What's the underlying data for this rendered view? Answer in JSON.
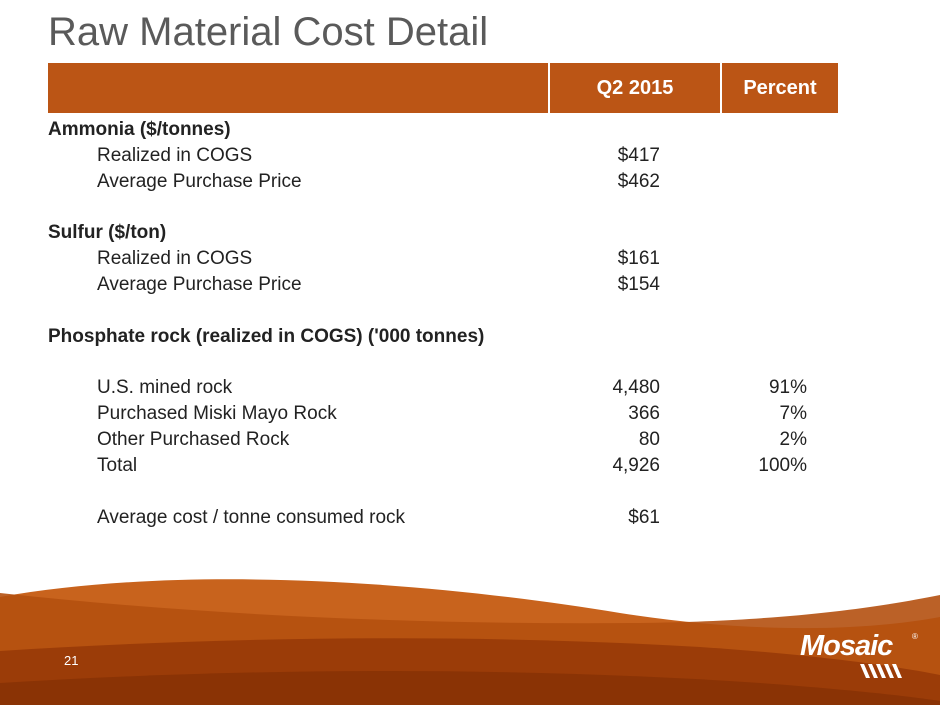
{
  "slide": {
    "title": "Raw Material Cost Detail",
    "page_number": "21"
  },
  "table": {
    "headers": {
      "blank": "",
      "q2_2015": "Q2 2015",
      "percent": "Percent"
    },
    "rows": [
      {
        "type": "section",
        "label": "Ammonia ($/tonnes)",
        "q": "",
        "p": ""
      },
      {
        "type": "item",
        "label": "Realized in COGS",
        "q": "$417",
        "p": ""
      },
      {
        "type": "item",
        "label": "Average Purchase Price",
        "q": "$462",
        "p": ""
      },
      {
        "type": "blank",
        "label": "",
        "q": "",
        "p": ""
      },
      {
        "type": "section",
        "label": "Sulfur ($/ton)",
        "q": "",
        "p": ""
      },
      {
        "type": "item",
        "label": "Realized in COGS",
        "q": "$161",
        "p": ""
      },
      {
        "type": "item",
        "label": "Average Purchase Price",
        "q": "$154",
        "p": ""
      },
      {
        "type": "blank",
        "label": "",
        "q": "",
        "p": ""
      },
      {
        "type": "section",
        "label": "Phosphate rock (realized in COGS) ('000 tonnes)",
        "q": "",
        "p": ""
      },
      {
        "type": "blank",
        "label": "",
        "q": "",
        "p": ""
      },
      {
        "type": "item",
        "label": "U.S. mined rock",
        "q": "4,480",
        "p": "91%"
      },
      {
        "type": "item",
        "label": "Purchased Miski Mayo Rock",
        "q": "366",
        "p": "7%"
      },
      {
        "type": "item",
        "label": "Other Purchased Rock",
        "q": "80",
        "p": "2%"
      },
      {
        "type": "item",
        "label": "Total",
        "q": "4,926",
        "p": "100%"
      },
      {
        "type": "blank",
        "label": "",
        "q": "",
        "p": ""
      },
      {
        "type": "item",
        "label": "Average cost / tonne consumed rock",
        "q": "$61",
        "p": ""
      }
    ]
  },
  "logo": {
    "text": "Mosaic",
    "reg": "®"
  },
  "colors": {
    "accent": "#bb5515",
    "accent_dark": "#8f3407",
    "title_gray": "#5a5a5a"
  }
}
